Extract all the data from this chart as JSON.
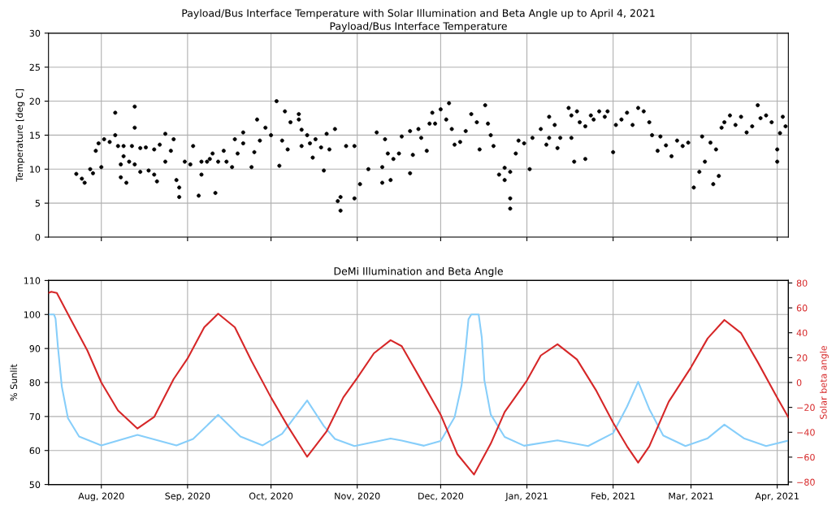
{
  "chart_data": [
    {
      "type": "scatter",
      "title": "Payload/Bus Interface Temperature with Solar Illumination and Beta Angle up to April 4, 2021",
      "subtitle": "Payload/Bus Interface Temperature",
      "ylabel": "Temperature [deg C]",
      "xlim": [
        "2020-07-13",
        "2021-04-05"
      ],
      "ylim": [
        0,
        30
      ],
      "yticks": [
        0,
        5,
        10,
        15,
        20,
        25,
        30
      ],
      "xticks": [
        {
          "value": "2020-08-01",
          "label": null
        },
        {
          "value": "2020-09-01",
          "label": null
        },
        {
          "value": "2020-10-01",
          "label": null
        },
        {
          "value": "2020-11-01",
          "label": null
        },
        {
          "value": "2020-12-01",
          "label": null
        },
        {
          "value": "2021-01-01",
          "label": null
        },
        {
          "value": "2021-02-01",
          "label": null
        },
        {
          "value": "2021-03-01",
          "label": null
        },
        {
          "value": "2021-04-01",
          "label": null
        }
      ],
      "tick_labels": "y",
      "grid": true,
      "marker": "circle",
      "series": [
        {
          "color": "#000000",
          "x": [
            "2020-07-23",
            "2020-07-25",
            "2020-07-26",
            "2020-07-28",
            "2020-07-29",
            "2020-07-30",
            "2020-07-31",
            "2020-08-01",
            "2020-08-02",
            "2020-08-04",
            "2020-08-06",
            "2020-08-06",
            "2020-08-07",
            "2020-08-08",
            "2020-08-08",
            "2020-08-09",
            "2020-08-09",
            "2020-08-10",
            "2020-08-11",
            "2020-08-12",
            "2020-08-13",
            "2020-08-13",
            "2020-08-13",
            "2020-08-15",
            "2020-08-15",
            "2020-08-17",
            "2020-08-18",
            "2020-08-20",
            "2020-08-20",
            "2020-08-21",
            "2020-08-22",
            "2020-08-24",
            "2020-08-24",
            "2020-08-26",
            "2020-08-27",
            "2020-08-28",
            "2020-08-29",
            "2020-08-29",
            "2020-08-31",
            "2020-09-02",
            "2020-09-03",
            "2020-09-05",
            "2020-09-06",
            "2020-09-06",
            "2020-09-08",
            "2020-09-09",
            "2020-09-10",
            "2020-09-11",
            "2020-09-12",
            "2020-09-14",
            "2020-09-15",
            "2020-09-17",
            "2020-09-18",
            "2020-09-19",
            "2020-09-21",
            "2020-09-21",
            "2020-09-24",
            "2020-09-25",
            "2020-09-26",
            "2020-09-27",
            "2020-09-29",
            "2020-10-01",
            "2020-10-03",
            "2020-10-04",
            "2020-10-05",
            "2020-10-06",
            "2020-10-07",
            "2020-10-08",
            "2020-10-11",
            "2020-10-11",
            "2020-10-12",
            "2020-10-12",
            "2020-10-14",
            "2020-10-15",
            "2020-10-16",
            "2020-10-17",
            "2020-10-19",
            "2020-10-20",
            "2020-10-21",
            "2020-10-22",
            "2020-10-24",
            "2020-10-25",
            "2020-10-26",
            "2020-10-26",
            "2020-10-28",
            "2020-10-31",
            "2020-10-31",
            "2020-11-02",
            "2020-11-05",
            "2020-11-08",
            "2020-11-10",
            "2020-11-10",
            "2020-11-11",
            "2020-11-12",
            "2020-11-13",
            "2020-11-14",
            "2020-11-16",
            "2020-11-17",
            "2020-11-20",
            "2020-11-20",
            "2020-11-21",
            "2020-11-23",
            "2020-11-24",
            "2020-11-26",
            "2020-11-27",
            "2020-11-28",
            "2020-11-29",
            "2020-12-01",
            "2020-12-03",
            "2020-12-04",
            "2020-12-05",
            "2020-12-06",
            "2020-12-08",
            "2020-12-10",
            "2020-12-12",
            "2020-12-14",
            "2020-12-15",
            "2020-12-17",
            "2020-12-18",
            "2020-12-19",
            "2020-12-20",
            "2020-12-22",
            "2020-12-24",
            "2020-12-24",
            "2020-12-26",
            "2020-12-26",
            "2020-12-26",
            "2020-12-28",
            "2020-12-29",
            "2020-12-31",
            "2021-01-02",
            "2021-01-03",
            "2021-01-06",
            "2021-01-08",
            "2021-01-09",
            "2021-01-09",
            "2021-01-11",
            "2021-01-12",
            "2021-01-13",
            "2021-01-16",
            "2021-01-17",
            "2021-01-17",
            "2021-01-18",
            "2021-01-19",
            "2021-01-20",
            "2021-01-22",
            "2021-01-22",
            "2021-01-24",
            "2021-01-25",
            "2021-01-27",
            "2021-01-29",
            "2021-01-30",
            "2021-02-01",
            "2021-02-02",
            "2021-02-04",
            "2021-02-06",
            "2021-02-08",
            "2021-02-10",
            "2021-02-12",
            "2021-02-14",
            "2021-02-15",
            "2021-02-17",
            "2021-02-18",
            "2021-02-20",
            "2021-02-22",
            "2021-02-24",
            "2021-02-26",
            "2021-02-28",
            "2021-03-02",
            "2021-03-04",
            "2021-03-05",
            "2021-03-06",
            "2021-03-08",
            "2021-03-09",
            "2021-03-10",
            "2021-03-11",
            "2021-03-12",
            "2021-03-13",
            "2021-03-15",
            "2021-03-17",
            "2021-03-19",
            "2021-03-21",
            "2021-03-23",
            "2021-03-25",
            "2021-03-26",
            "2021-03-28",
            "2021-03-30",
            "2021-04-01",
            "2021-04-01",
            "2021-04-02",
            "2021-04-03",
            "2021-04-04"
          ],
          "values": [
            9.3,
            8.6,
            8.0,
            10.0,
            9.4,
            12.7,
            13.8,
            10.3,
            14.4,
            14.0,
            18.3,
            15.0,
            13.4,
            8.8,
            10.7,
            11.9,
            13.4,
            8.0,
            11.1,
            13.4,
            19.2,
            16.1,
            10.7,
            13.1,
            9.6,
            13.2,
            9.8,
            12.9,
            9.2,
            8.2,
            13.6,
            15.2,
            11.1,
            12.7,
            14.4,
            8.4,
            7.3,
            5.9,
            11.1,
            10.7,
            13.4,
            6.1,
            11.1,
            9.2,
            11.1,
            11.5,
            12.3,
            6.5,
            11.1,
            12.7,
            11.1,
            10.3,
            14.4,
            12.3,
            13.8,
            15.4,
            10.3,
            12.5,
            17.3,
            14.2,
            16.1,
            15.0,
            20.0,
            10.5,
            14.2,
            18.5,
            12.9,
            16.9,
            18.1,
            17.3,
            13.4,
            15.8,
            15.0,
            13.8,
            11.7,
            14.4,
            13.2,
            9.8,
            15.2,
            12.9,
            15.9,
            5.3,
            5.9,
            3.9,
            13.4,
            13.4,
            5.7,
            7.8,
            10.0,
            15.4,
            10.3,
            8.0,
            14.4,
            12.3,
            8.4,
            11.5,
            12.3,
            14.8,
            15.6,
            9.4,
            12.1,
            15.9,
            14.6,
            12.7,
            16.7,
            18.3,
            16.7,
            18.8,
            17.3,
            19.7,
            15.9,
            13.6,
            14.0,
            15.6,
            18.1,
            16.9,
            12.9,
            19.4,
            16.7,
            15.0,
            13.4,
            9.2,
            10.2,
            8.4,
            5.7,
            4.2,
            9.6,
            12.3,
            14.2,
            13.8,
            10.0,
            14.6,
            15.9,
            13.6,
            17.7,
            14.6,
            16.5,
            13.1,
            14.6,
            19.0,
            14.6,
            17.9,
            11.1,
            18.5,
            16.9,
            11.5,
            16.3,
            17.9,
            17.3,
            18.5,
            17.7,
            18.5,
            12.5,
            16.5,
            17.3,
            18.3,
            16.5,
            19.0,
            18.5,
            16.9,
            15.0,
            12.7,
            14.8,
            13.5,
            11.9,
            14.2,
            13.4,
            13.9,
            7.3,
            9.6,
            14.8,
            11.1,
            13.9,
            7.8,
            12.9,
            9.0,
            16.1,
            16.9,
            17.9,
            16.5,
            17.7,
            15.4,
            16.3,
            19.4,
            17.5,
            17.9,
            16.9,
            11.1,
            12.9,
            15.3,
            17.7,
            16.3
          ]
        }
      ]
    },
    {
      "type": "line",
      "title": "DeMi Illumination and Beta Angle",
      "ylabel": "% Sunlit",
      "y2label": "Solar beta angle",
      "xlim": [
        "2020-07-13",
        "2021-04-05"
      ],
      "ylim": [
        50,
        110
      ],
      "yticks": [
        50,
        60,
        70,
        80,
        90,
        100,
        110
      ],
      "y2lim": [
        -82,
        82
      ],
      "y2ticks": [
        -80,
        -60,
        -40,
        -20,
        0,
        20,
        40,
        60,
        80
      ],
      "xticks": [
        {
          "value": "2020-08-01",
          "label": "Aug, 2020"
        },
        {
          "value": "2020-09-01",
          "label": "Sep, 2020"
        },
        {
          "value": "2020-10-01",
          "label": "Oct, 2020"
        },
        {
          "value": "2020-11-01",
          "label": "Nov, 2020"
        },
        {
          "value": "2020-12-01",
          "label": "Dec, 2020"
        },
        {
          "value": "2021-01-01",
          "label": "Jan, 2021"
        },
        {
          "value": "2021-02-01",
          "label": "Feb, 2021"
        },
        {
          "value": "2021-03-01",
          "label": "Mar, 2021"
        },
        {
          "value": "2021-04-01",
          "label": "Apr, 2021"
        }
      ],
      "grid": true,
      "line_style": "solid",
      "series": [
        {
          "color": "#87cefa",
          "x": [
            "2020-07-13",
            "2020-07-15",
            "2020-07-15T13:00",
            "2020-07-16T10:00",
            "2020-07-17T19:00",
            "2020-07-20",
            "2020-07-24",
            "2020-08-01",
            "2020-08-14",
            "2020-08-28",
            "2020-09-03",
            "2020-09-12",
            "2020-09-20",
            "2020-09-28",
            "2020-10-05",
            "2020-10-14",
            "2020-10-20",
            "2020-10-24",
            "2020-10-31",
            "2020-11-13",
            "2020-11-17",
            "2020-11-25",
            "2020-12-01",
            "2020-12-06",
            "2020-12-08T12:00",
            "2020-12-10",
            "2020-12-11",
            "2020-12-12",
            "2020-12-14T16:00",
            "2020-12-15T19:00",
            "2020-12-16T17:00",
            "2020-12-19",
            "2020-12-24",
            "2020-12-31",
            "2021-01-12",
            "2021-01-23",
            "2021-02-01",
            "2021-02-06",
            "2021-02-10",
            "2021-02-14",
            "2021-02-19",
            "2021-02-27",
            "2021-03-07",
            "2021-03-13",
            "2021-03-20",
            "2021-03-28",
            "2021-04-05"
          ],
          "values": [
            100,
            100,
            98.8,
            90.3,
            78.8,
            69.5,
            64.1,
            61.5,
            64.6,
            61.5,
            63.4,
            70.5,
            64.1,
            61.5,
            64.9,
            74.7,
            67.2,
            63.4,
            61.3,
            63.5,
            62.9,
            61.4,
            62.8,
            69.8,
            79.1,
            90,
            98.6,
            100,
            100,
            93.2,
            80.7,
            70.6,
            64,
            61.4,
            63,
            61.3,
            65.1,
            72.9,
            80.2,
            72.2,
            64.4,
            61.3,
            63.6,
            67.6,
            63.6,
            61.3,
            62.9
          ]
        },
        {
          "color": "#d62728",
          "axis": "y2",
          "x": [
            "2020-07-13",
            "2020-07-14",
            "2020-07-16",
            "2020-07-21",
            "2020-07-27",
            "2020-08-01",
            "2020-08-07",
            "2020-08-14",
            "2020-08-20",
            "2020-08-27",
            "2020-09-01",
            "2020-09-07",
            "2020-09-12",
            "2020-09-18",
            "2020-09-24",
            "2020-10-01",
            "2020-10-07",
            "2020-10-14",
            "2020-10-21",
            "2020-10-27",
            "2020-11-01",
            "2020-11-07",
            "2020-11-13",
            "2020-11-17",
            "2020-11-23",
            "2020-12-01",
            "2020-12-07",
            "2020-12-13",
            "2020-12-19",
            "2020-12-24",
            "2021-01-01",
            "2021-01-06",
            "2021-01-12",
            "2021-01-19",
            "2021-01-26",
            "2021-02-01",
            "2021-02-06",
            "2021-02-10",
            "2021-02-14",
            "2021-02-21",
            "2021-03-01",
            "2021-03-07",
            "2021-03-13",
            "2021-03-19",
            "2021-03-25",
            "2021-04-01",
            "2021-04-05"
          ],
          "values": [
            72,
            73,
            72,
            50.7,
            25.6,
            0,
            -22.5,
            -37,
            -27.7,
            2.8,
            19.3,
            44.4,
            55.3,
            44.4,
            17.3,
            -12,
            -35,
            -59.7,
            -39.2,
            -12,
            3.7,
            23.5,
            34,
            29.2,
            5.8,
            -25.9,
            -57.6,
            -74,
            -49.2,
            -23.8,
            1.6,
            21.7,
            30.8,
            18.5,
            -6.8,
            -32.3,
            -51.3,
            -64.4,
            -51.3,
            -15.4,
            12.2,
            35.5,
            50.3,
            39.7,
            16.4,
            -12.2,
            -28
          ]
        }
      ]
    }
  ]
}
